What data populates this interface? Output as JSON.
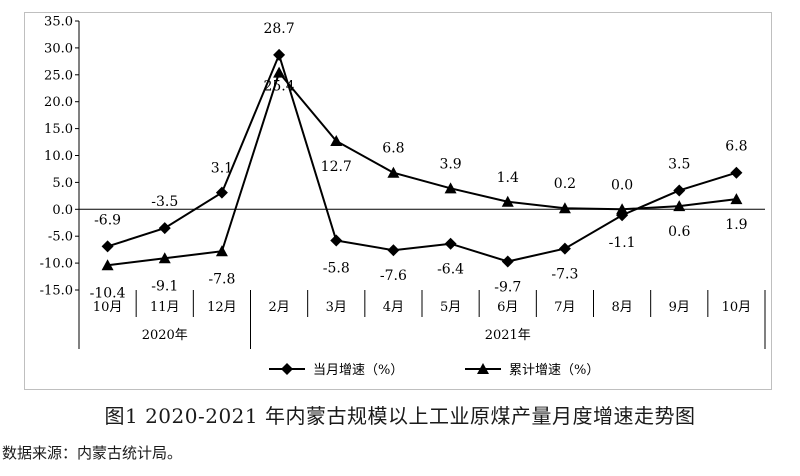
{
  "caption": "图1  2020-2021 年内蒙古规模以上工业原煤产量月度增速走势图",
  "source_label": "数据来源：",
  "source_value": "内蒙古统计局。",
  "chart_data": {
    "type": "line",
    "categories": [
      "10月",
      "11月",
      "12月",
      "2月",
      "3月",
      "4月",
      "5月",
      "6月",
      "7月",
      "8月",
      "9月",
      "10月"
    ],
    "year_groups": [
      {
        "label": "2020年",
        "from": 0,
        "to": 2
      },
      {
        "label": "2021年",
        "from": 3,
        "to": 11
      }
    ],
    "ylim": [
      -15,
      35
    ],
    "yticks": [
      "-15.0",
      "-10.0",
      "-5.0",
      "0.0",
      "5.0",
      "10.0",
      "15.0",
      "20.0",
      "25.0",
      "30.0",
      "35.0"
    ],
    "grid": false,
    "legend_position": "bottom",
    "series": [
      {
        "name": "当月增速（%）",
        "marker": "diamond",
        "values": [
          -6.9,
          -3.5,
          3.1,
          28.7,
          -5.8,
          -7.6,
          -6.4,
          -9.7,
          -7.3,
          -1.1,
          3.5,
          6.8
        ],
        "labels": [
          "-6.9",
          "-3.5",
          "3.1",
          "28.7",
          "-5.8",
          "-7.6",
          "-6.4",
          "-9.7",
          "-7.3",
          "-1.1",
          "3.5",
          "6.8"
        ]
      },
      {
        "name": "累计增速（%）",
        "marker": "triangle",
        "values": [
          -10.4,
          -9.1,
          -7.8,
          25.4,
          12.7,
          6.8,
          3.9,
          1.4,
          0.2,
          0.0,
          0.6,
          1.9
        ],
        "labels": [
          "-10.4",
          "-9.1",
          "-7.8",
          "25.4",
          "12.7",
          "6.8",
          "3.9",
          "1.4",
          "0.2",
          "0.0",
          "0.6",
          "1.9"
        ]
      }
    ],
    "colors": {
      "line": "#000000",
      "axis": "#000000",
      "frame": "#bfbfbf"
    }
  }
}
